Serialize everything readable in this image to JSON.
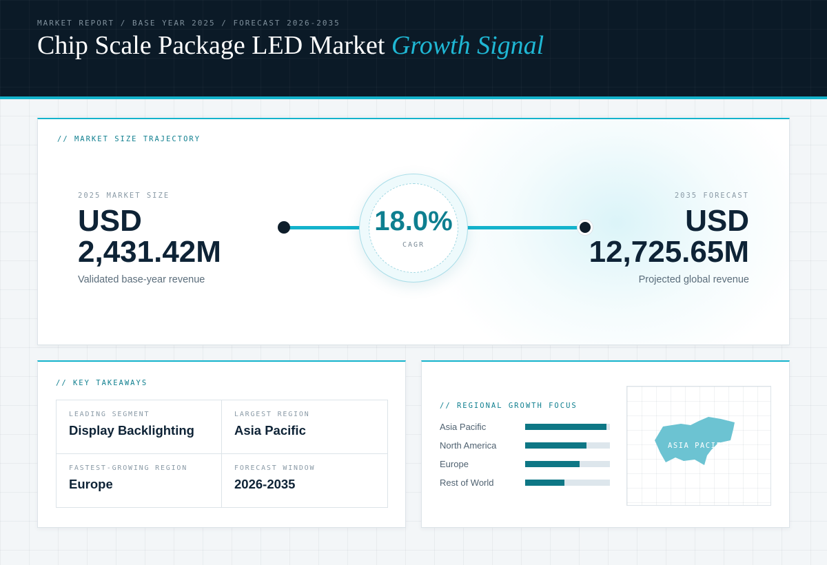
{
  "header": {
    "eyebrow": "MARKET REPORT / BASE YEAR 2025 / FORECAST 2026-2035",
    "title_main": "Chip Scale Package LED Market",
    "title_accent": "Growth Signal"
  },
  "trajectory": {
    "label": "// MARKET SIZE TRAJECTORY",
    "start": {
      "label": "2025 MARKET SIZE",
      "value_line1": "USD",
      "value_line2": "2,431.42M",
      "sub": "Validated base-year revenue"
    },
    "cagr": {
      "value": "18.0%",
      "label": "CAGR"
    },
    "end": {
      "label": "2035 FORECAST",
      "value_line1": "USD",
      "value_line2": "12,725.65M",
      "sub": "Projected global revenue"
    }
  },
  "takeaways": {
    "label": "// KEY TAKEAWAYS",
    "items": [
      {
        "label": "LEADING SEGMENT",
        "value": "Display Backlighting"
      },
      {
        "label": "LARGEST REGION",
        "value": "Asia Pacific"
      },
      {
        "label": "FASTEST-GROWING REGION",
        "value": "Europe"
      },
      {
        "label": "FORECAST WINDOW",
        "value": "2026-2035"
      }
    ]
  },
  "regional": {
    "label": "// REGIONAL GROWTH FOCUS",
    "bars": [
      {
        "name": "Asia Pacific",
        "level": 0.96
      },
      {
        "name": "North America",
        "level": 0.72
      },
      {
        "name": "Europe",
        "level": 0.64
      },
      {
        "name": "Rest of World",
        "level": 0.46
      }
    ],
    "map_label": "ASIA PACIFIC",
    "colors": {
      "bar": "#0e7785",
      "track": "#dde6ec",
      "map_shape": "#6cc3d2"
    }
  }
}
